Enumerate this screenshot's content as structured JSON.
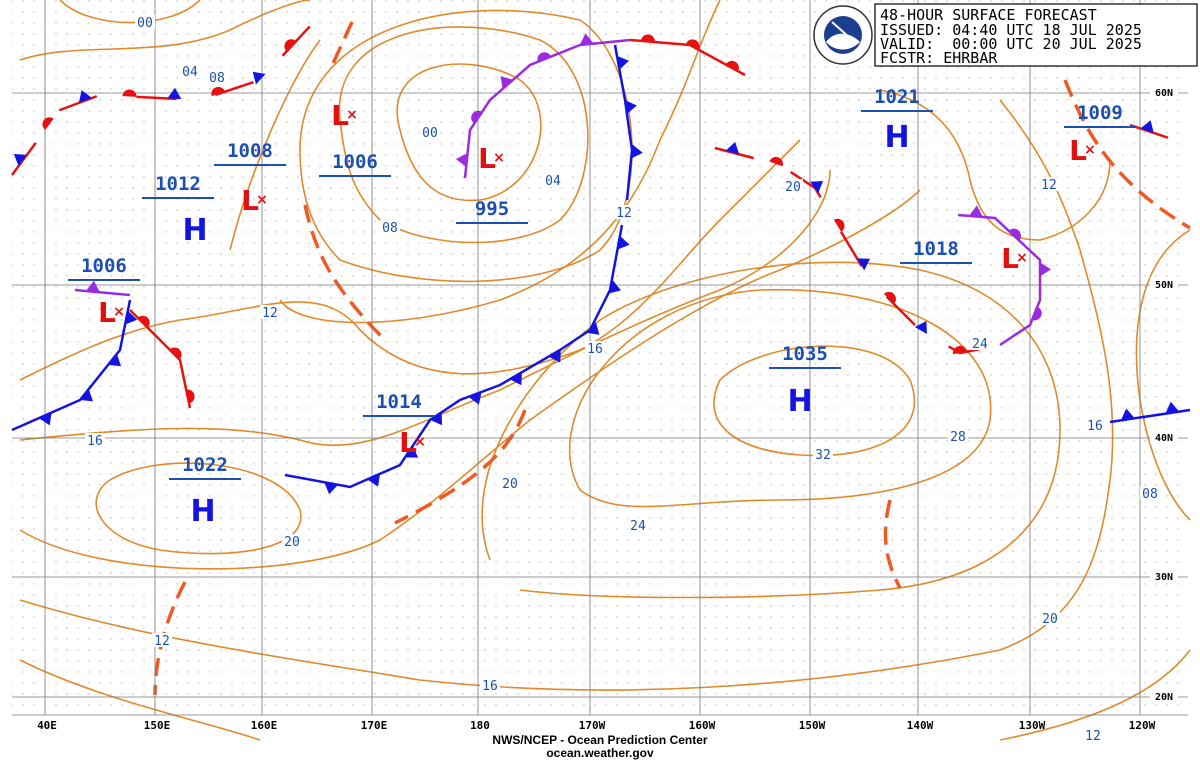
{
  "header": {
    "lines": [
      "48-HOUR SURFACE FORECAST",
      "ISSUED: 04:40 UTC 18 JUL 2025",
      "VALID:  00:00 UTC 20 JUL 2025",
      "FCSTR: EHRBAR"
    ]
  },
  "longitudes": [
    "40E",
    "150E",
    "160E",
    "170E",
    "180",
    "170W",
    "160W",
    "150W",
    "140W",
    "130W",
    "120W"
  ],
  "latitudes": [
    "60N",
    "50N",
    "40N",
    "30N",
    "20N"
  ],
  "pressure_centers": [
    {
      "value": "1012",
      "symbol": "H"
    },
    {
      "value": "1008",
      "symbol": "L"
    },
    {
      "value": "1006",
      "symbol": "L"
    },
    {
      "value": "995",
      "symbol": "L"
    },
    {
      "value": "1006",
      "symbol": "L"
    },
    {
      "value": "1014",
      "symbol": "L"
    },
    {
      "value": "1022",
      "symbol": "H"
    },
    {
      "value": "1035",
      "symbol": "H"
    },
    {
      "value": "1021",
      "symbol": "H"
    },
    {
      "value": "1009",
      "symbol": "L"
    },
    {
      "value": "1018",
      "symbol": "L"
    }
  ],
  "isobar_labels": [
    "00",
    "04",
    "08",
    "00",
    "04",
    "08",
    "12",
    "12",
    "16",
    "16",
    "20",
    "20",
    "24",
    "32",
    "28",
    "24",
    "20",
    "12",
    "16",
    "08",
    "20",
    "12",
    "16",
    "12"
  ],
  "footer": {
    "agency": "NWS/NCEP - Ocean Prediction Center",
    "url": "ocean.weather.gov"
  }
}
